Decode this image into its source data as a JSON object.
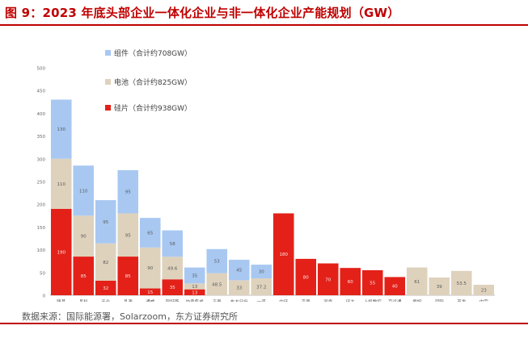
{
  "title": "图 9：2023 年底头部企业一体化企业与非一体化企业产能规划（GW）",
  "source": "数据来源：国际能源署，Solarzoom，东方证券研究所",
  "colors": {
    "accent": "#c00000",
    "wafer": "#e32119",
    "cell": "#ded2bd",
    "module": "#a8c8f2"
  },
  "chart_data": {
    "type": "bar",
    "stacked": true,
    "categories": [
      "隆基",
      "晶科",
      "天合",
      "晶澳",
      "通威",
      "阿特斯",
      "协鑫集成",
      "正泰",
      "东方日升",
      "一道",
      "中环",
      "高景",
      "双良",
      "环太",
      "上机数控",
      "京运通",
      "爱旭",
      "润阳",
      "英发",
      "中宇"
    ],
    "ylim": [
      0,
      500
    ],
    "yticks": [
      0,
      50,
      100,
      150,
      200,
      250,
      300,
      350,
      400,
      450,
      500
    ],
    "grid": false,
    "legend_position": "top-left",
    "series": [
      {
        "name": "硅片（合计约938GW）",
        "color": "#e32119",
        "values": [
          190,
          85,
          32,
          85,
          15,
          35,
          13,
          0,
          0,
          0,
          180,
          80,
          70,
          60,
          55,
          40,
          0,
          0,
          0,
          0
        ],
        "labels": [
          "190",
          "85",
          "32",
          "85",
          "15",
          "35",
          "13",
          "",
          "",
          "",
          "180",
          "80",
          "70",
          "60",
          "55",
          "40",
          "",
          "",
          "",
          ""
        ]
      },
      {
        "name": "电池（合计约825GW）",
        "color": "#ded2bd",
        "values": [
          110,
          90,
          82,
          95,
          90,
          49.6,
          13,
          48.5,
          33,
          37.2,
          0,
          0,
          0,
          0,
          0,
          0,
          61,
          39,
          53.5,
          23
        ],
        "labels": [
          "110",
          "90",
          "82",
          "95",
          "90",
          "49.6",
          "13",
          "48.5",
          "33",
          "37.2",
          "",
          "",
          "",
          "",
          "",
          "",
          "61",
          "39",
          "53.5",
          "23"
        ]
      },
      {
        "name": "组件（合计约708GW）",
        "color": "#a8c8f2",
        "values": [
          130,
          110,
          95,
          95,
          65,
          58,
          35,
          53,
          45,
          30,
          0,
          0,
          0,
          0,
          0,
          0,
          0,
          0,
          0,
          0
        ],
        "labels": [
          "130",
          "110",
          "95",
          "95",
          "65",
          "58",
          "35",
          "53",
          "45",
          "30",
          "",
          "",
          "",
          "",
          "",
          "",
          "",
          "",
          "",
          ""
        ]
      }
    ],
    "legend_order": [
      2,
      1,
      0
    ]
  }
}
